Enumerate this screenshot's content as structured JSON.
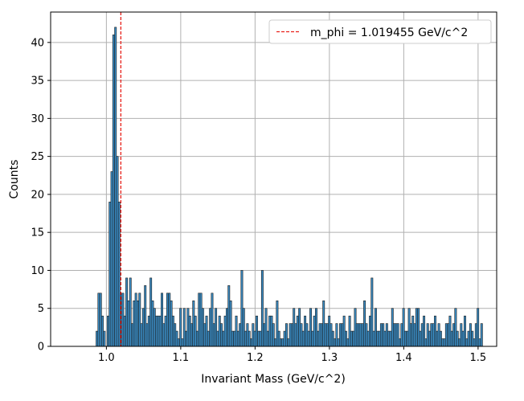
{
  "chart_data": {
    "type": "bar",
    "title": "",
    "xlabel": "Invariant Mass (GeV/c^2)",
    "ylabel": "Counts",
    "xlim": [
      0.925,
      1.525
    ],
    "ylim": [
      0,
      44
    ],
    "xticks": [
      1.0,
      1.1,
      1.2,
      1.3,
      1.4,
      1.5
    ],
    "xtick_labels": [
      "1.0",
      "1.1",
      "1.2",
      "1.3",
      "1.4",
      "1.5"
    ],
    "yticks": [
      0,
      5,
      10,
      15,
      20,
      25,
      30,
      35,
      40
    ],
    "ytick_labels": [
      "0",
      "5",
      "10",
      "15",
      "20",
      "25",
      "30",
      "35",
      "40"
    ],
    "grid": true,
    "legend_position": "top-right",
    "bar_color": "#3a8cc4",
    "edge_color": "#1a1a1a",
    "bin_start": 0.986,
    "bin_width": 0.0025,
    "values": [
      2,
      7,
      7,
      4,
      2,
      0,
      4,
      19,
      23,
      41,
      42,
      25,
      19,
      7,
      7,
      4,
      9,
      6,
      9,
      3,
      6,
      7,
      6,
      7,
      3,
      5,
      8,
      3,
      4,
      9,
      6,
      5,
      4,
      4,
      4,
      7,
      3,
      4,
      7,
      7,
      6,
      4,
      3,
      2,
      1,
      5,
      1,
      5,
      2,
      5,
      4,
      3,
      6,
      4,
      2,
      7,
      7,
      5,
      3,
      4,
      2,
      5,
      7,
      3,
      5,
      2,
      4,
      3,
      2,
      4,
      5,
      8,
      6,
      2,
      2,
      4,
      2,
      3,
      10,
      5,
      2,
      3,
      2,
      1,
      3,
      2,
      4,
      2,
      2,
      10,
      3,
      5,
      2,
      4,
      4,
      3,
      1,
      6,
      2,
      1,
      1,
      2,
      3,
      1,
      3,
      3,
      5,
      3,
      4,
      5,
      3,
      2,
      4,
      3,
      2,
      5,
      2,
      4,
      5,
      2,
      3,
      3,
      6,
      3,
      3,
      4,
      3,
      2,
      1,
      3,
      1,
      3,
      3,
      4,
      2,
      1,
      4,
      2,
      2,
      5,
      3,
      3,
      3,
      3,
      6,
      3,
      2,
      4,
      9,
      2,
      5,
      2,
      2,
      3,
      3,
      2,
      3,
      2,
      2,
      5,
      3,
      3,
      3,
      1,
      3,
      5,
      2,
      2,
      5,
      3,
      4,
      3,
      5,
      5,
      2,
      3,
      4,
      1,
      3,
      2,
      3,
      3,
      4,
      2,
      3,
      2,
      1,
      1,
      3,
      3,
      4,
      2,
      3,
      5,
      2,
      1,
      3,
      2,
      4,
      1,
      2,
      3,
      2,
      1,
      3,
      5,
      1,
      3
    ],
    "reference_line": {
      "x": 1.019455,
      "color": "#e8201a",
      "style": "dashed",
      "label": "m_phi = 1.019455 GeV/c^2"
    }
  }
}
